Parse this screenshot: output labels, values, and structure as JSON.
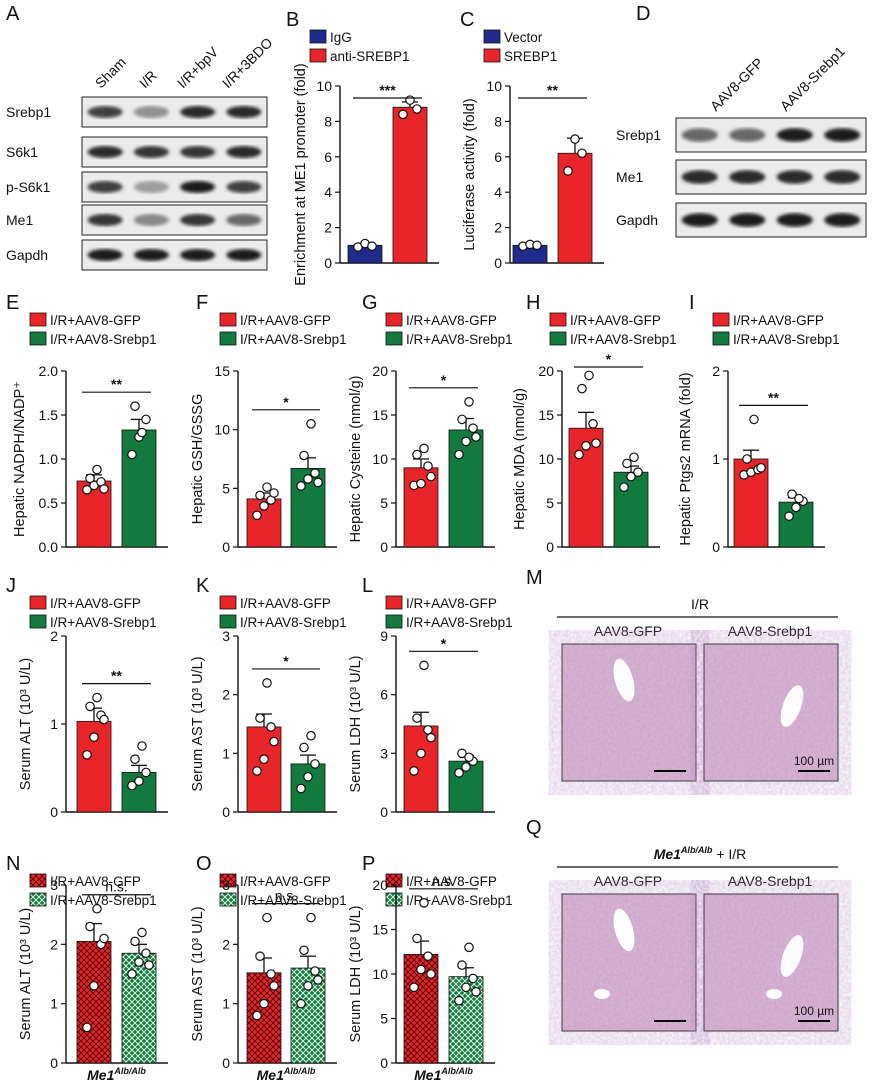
{
  "colors": {
    "red": "#e8262a",
    "green": "#137a3d",
    "navy": "#1f2a8a",
    "black": "#111111",
    "histo": "#dcb8d2"
  },
  "blot_A": {
    "letter": "A",
    "lanes": [
      "Sham",
      "I/R",
      "I/R+bpV",
      "I/R+3BDO"
    ],
    "rows": [
      {
        "label": "Srebp1",
        "intensity": [
          0.75,
          0.35,
          0.85,
          0.85
        ]
      },
      {
        "label": "S6k1",
        "intensity": [
          0.85,
          0.8,
          0.8,
          0.85
        ]
      },
      {
        "label": "p-S6k1",
        "intensity": [
          0.75,
          0.3,
          0.9,
          0.75
        ]
      },
      {
        "label": "Me1",
        "intensity": [
          0.8,
          0.4,
          0.8,
          0.55
        ]
      },
      {
        "label": "Gapdh",
        "intensity": [
          0.9,
          0.9,
          0.9,
          0.9
        ]
      }
    ]
  },
  "blot_D": {
    "letter": "D",
    "lanes": [
      "AAV8-GFP",
      "AAV8-Srebp1"
    ],
    "rows": [
      {
        "label": "Srebp1",
        "intensity": [
          0.55,
          0.55,
          0.9,
          0.9
        ]
      },
      {
        "label": "Me1",
        "intensity": [
          0.85,
          0.85,
          0.85,
          0.85
        ]
      },
      {
        "label": "Gapdh",
        "intensity": [
          0.9,
          0.9,
          0.9,
          0.9
        ]
      }
    ]
  },
  "histology": [
    {
      "letter": "M",
      "group": "I/R",
      "group_sup": "",
      "panels": [
        "AAV8-GFP",
        "AAV8-Srebp1"
      ],
      "scale_bar": "100 µm"
    },
    {
      "letter": "Q",
      "group": "Me1",
      "group_sup": "Alb/Alb",
      "group_suffix": " + I/R",
      "panels": [
        "AAV8-GFP",
        "AAV8-Srebp1"
      ],
      "scale_bar": "100 µm"
    }
  ],
  "chart_data": [
    {
      "type": "bar",
      "letter": "B",
      "legend": [
        "IgG",
        "anti-SREBP1"
      ],
      "ylabel": "Enrichment at ME1 promoter (fold)",
      "ylim": [
        0,
        10
      ],
      "ticks": [
        0,
        2,
        4,
        6,
        8,
        10
      ],
      "values": [
        1.0,
        8.8
      ],
      "errors": [
        0.12,
        0.3
      ],
      "points": [
        [
          0.9,
          1.1,
          0.95
        ],
        [
          8.4,
          9.2,
          8.7
        ]
      ],
      "significance": "***"
    },
    {
      "type": "bar",
      "letter": "C",
      "legend": [
        "Vector",
        "SREBP1"
      ],
      "ylabel": "Luciferase activity (fold)",
      "ylim": [
        0,
        10
      ],
      "ticks": [
        0,
        2,
        4,
        6,
        8,
        10
      ],
      "values": [
        1.0,
        6.2
      ],
      "errors": [
        0.06,
        0.85
      ],
      "points": [
        [
          0.95,
          1.05,
          1.0
        ],
        [
          5.2,
          7.0,
          6.2
        ]
      ],
      "significance": "**"
    },
    {
      "type": "bar",
      "letter": "E",
      "legend": [
        "I/R+AAV8-GFP",
        "I/R+AAV8-Srebp1"
      ],
      "ylabel": "Hepatic NADPH/NADP⁺",
      "ylim": [
        0,
        2.0
      ],
      "ticks": [
        0,
        0.5,
        1.0,
        1.5,
        2.0
      ],
      "values": [
        0.75,
        1.33
      ],
      "errors": [
        0.07,
        0.12
      ],
      "points": [
        [
          0.65,
          0.7,
          0.74,
          0.78,
          0.88,
          0.66
        ],
        [
          1.05,
          1.25,
          1.45,
          1.6,
          1.3
        ]
      ],
      "significance": "**"
    },
    {
      "type": "bar",
      "letter": "F",
      "legend": [
        "I/R+AAV8-GFP",
        "I/R+AAV8-Srebp1"
      ],
      "ylabel": "Hepatic GSH/GSSG",
      "ylim": [
        0,
        15
      ],
      "ticks": [
        0,
        5,
        10,
        15
      ],
      "values": [
        4.1,
        6.7
      ],
      "errors": [
        0.5,
        0.9
      ],
      "points": [
        [
          2.7,
          3.5,
          4.0,
          4.4,
          5.1,
          4.6
        ],
        [
          5.2,
          5.8,
          6.3,
          7.8,
          10.5,
          5.5
        ]
      ],
      "significance": "*"
    },
    {
      "type": "bar",
      "letter": "G",
      "legend": [
        "I/R+AAV8-GFP",
        "I/R+AAV8-Srebp1"
      ],
      "ylabel": "Hepatic Cysteine (nmol/g)",
      "ylim": [
        0,
        20
      ],
      "ticks": [
        0,
        5,
        10,
        15,
        20
      ],
      "values": [
        9.0,
        13.3
      ],
      "errors": [
        1.0,
        1.3
      ],
      "points": [
        [
          7.0,
          7.2,
          9.2,
          10.5,
          11.2,
          8.0
        ],
        [
          10.5,
          12.0,
          13.5,
          14.5,
          16.5,
          12.5
        ]
      ],
      "significance": "*"
    },
    {
      "type": "bar",
      "letter": "H",
      "legend": [
        "I/R+AAV8-GFP",
        "I/R+AAV8-Srebp1"
      ],
      "ylabel": "Hepatic MDA (nmol/g)",
      "ylim": [
        0,
        20
      ],
      "ticks": [
        0,
        5,
        10,
        15,
        20
      ],
      "values": [
        13.5,
        8.5
      ],
      "errors": [
        1.8,
        0.7
      ],
      "points": [
        [
          10.5,
          11.5,
          14.0,
          18.0,
          19.5,
          11.8
        ],
        [
          6.8,
          8.0,
          8.5,
          9.5,
          10.2
        ]
      ],
      "significance": "*"
    },
    {
      "type": "bar",
      "letter": "I",
      "legend": [
        "I/R+AAV8-GFP",
        "I/R+AAV8-Srebp1"
      ],
      "ylabel": "Hepatic Ptgs2 mRNA (fold)",
      "ylim": [
        0,
        2
      ],
      "ticks": [
        0,
        1,
        2
      ],
      "values": [
        1.0,
        0.51
      ],
      "errors": [
        0.1,
        0.05
      ],
      "points": [
        [
          0.82,
          0.85,
          0.88,
          1.0,
          1.45,
          0.9
        ],
        [
          0.35,
          0.45,
          0.52,
          0.6,
          0.55
        ]
      ],
      "significance": "**"
    },
    {
      "type": "bar",
      "letter": "J",
      "legend": [
        "I/R+AAV8-GFP",
        "I/R+AAV8-Srebp1"
      ],
      "ylabel": "Serum ALT (10³ U/L)",
      "ylim": [
        0,
        2
      ],
      "ticks": [
        0,
        1,
        2
      ],
      "values": [
        1.03,
        0.45
      ],
      "errors": [
        0.15,
        0.08
      ],
      "points": [
        [
          0.65,
          0.85,
          1.1,
          1.2,
          1.3,
          1.05
        ],
        [
          0.3,
          0.35,
          0.45,
          0.6,
          0.75
        ]
      ],
      "significance": "**"
    },
    {
      "type": "bar",
      "letter": "K",
      "legend": [
        "I/R+AAV8-GFP",
        "I/R+AAV8-Srebp1"
      ],
      "ylabel": "Serum AST (10³ U/L)",
      "ylim": [
        0,
        3
      ],
      "ticks": [
        0,
        1,
        2,
        3
      ],
      "values": [
        1.45,
        0.82
      ],
      "errors": [
        0.22,
        0.15
      ],
      "points": [
        [
          0.7,
          0.9,
          1.45,
          1.6,
          2.2,
          1.2
        ],
        [
          0.4,
          0.6,
          0.82,
          1.1,
          1.3
        ]
      ],
      "significance": "*"
    },
    {
      "type": "bar",
      "letter": "L",
      "legend": [
        "I/R+AAV8-GFP",
        "I/R+AAV8-Srebp1"
      ],
      "ylabel": "Serum LDH (10³ U/L)",
      "ylim": [
        0,
        9
      ],
      "ticks": [
        0,
        3,
        6,
        9
      ],
      "values": [
        4.4,
        2.6
      ],
      "errors": [
        0.7,
        0.3
      ],
      "points": [
        [
          2.1,
          3.0,
          4.2,
          4.8,
          7.5,
          3.8
        ],
        [
          2.0,
          2.3,
          2.6,
          3.0,
          2.8
        ]
      ],
      "significance": "*"
    },
    {
      "type": "bar",
      "letter": "N",
      "hatched": true,
      "legend": [
        "I/R+AAV8-GFP",
        "I/R+AAV8-Srebp1"
      ],
      "ylabel": "Serum ALT (10³ U/L)",
      "xlabel": "Me1",
      "xlabel_sup": "Alb/Alb",
      "ylim": [
        0,
        3
      ],
      "ticks": [
        0,
        1,
        2,
        3
      ],
      "values": [
        2.05,
        1.85
      ],
      "errors": [
        0.3,
        0.15
      ],
      "points": [
        [
          0.6,
          1.3,
          2.0,
          2.3,
          2.6,
          2.1
        ],
        [
          1.5,
          1.7,
          1.85,
          2.05,
          2.2,
          1.65
        ]
      ],
      "significance": "n.s."
    },
    {
      "type": "bar",
      "letter": "O",
      "hatched": true,
      "legend": [
        "I/R+AAV8-GFP",
        "I/R+AAV8-Srebp1"
      ],
      "ylabel": "Serum AST (10³ U/L)",
      "xlabel": "Me1",
      "xlabel_sup": "Alb/Alb",
      "ylim": [
        0,
        3
      ],
      "ticks": [
        0,
        1,
        2,
        3
      ],
      "values": [
        1.52,
        1.6
      ],
      "errors": [
        0.25,
        0.2
      ],
      "points": [
        [
          0.8,
          1.0,
          1.5,
          1.8,
          2.45,
          1.3
        ],
        [
          1.0,
          1.3,
          1.55,
          1.9,
          2.45,
          1.4
        ]
      ],
      "significance": "n.s."
    },
    {
      "type": "bar",
      "letter": "P",
      "hatched": true,
      "legend": [
        "I/R+AAV8-GFP",
        "I/R+AAV8-Srebp1"
      ],
      "ylabel": "Serum LDH (10³ U/L)",
      "xlabel": "Me1",
      "xlabel_sup": "Alb/Alb",
      "ylim": [
        0,
        20
      ],
      "ticks": [
        0,
        5,
        10,
        15,
        20
      ],
      "values": [
        12.2,
        9.7
      ],
      "errors": [
        1.5,
        1.0
      ],
      "points": [
        [
          8.5,
          10.5,
          12.0,
          14.0,
          18.0,
          10.0
        ],
        [
          7.0,
          8.5,
          9.5,
          11.0,
          13.0,
          8.0
        ]
      ],
      "significance": "n.s."
    }
  ]
}
